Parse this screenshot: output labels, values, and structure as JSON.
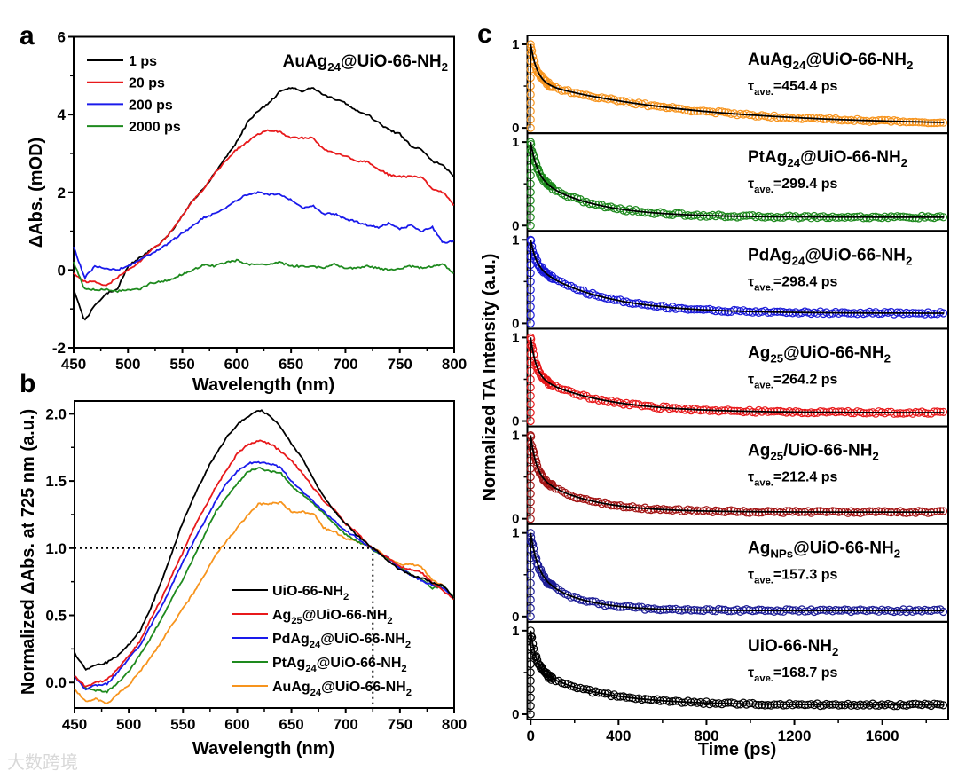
{
  "watermark": "大数跨境",
  "chart_data": [
    {
      "panel": "a",
      "type": "line",
      "annotation": "AuAg_{24}@UiO-66-NH_{2}",
      "xlabel": "Wavelength (nm)",
      "ylabel": "ΔAbs. (mOD)",
      "xlim": [
        450,
        800
      ],
      "ylim": [
        -2,
        6
      ],
      "xticks": [
        450,
        500,
        550,
        600,
        650,
        700,
        750,
        800
      ],
      "yticks": [
        -2,
        0,
        2,
        4,
        6
      ],
      "legend_position": "top-left",
      "x": [
        450,
        460,
        470,
        480,
        490,
        500,
        510,
        520,
        530,
        540,
        550,
        560,
        570,
        580,
        590,
        600,
        610,
        620,
        630,
        640,
        650,
        660,
        670,
        680,
        690,
        700,
        710,
        720,
        730,
        740,
        750,
        760,
        770,
        780,
        790,
        800
      ],
      "series": [
        {
          "name": "1 ps",
          "color": "#000000",
          "values": [
            -0.5,
            -1.3,
            -0.9,
            -0.6,
            -0.5,
            0.1,
            0.3,
            0.5,
            0.7,
            1.0,
            1.4,
            1.8,
            2.1,
            2.5,
            2.9,
            3.3,
            3.8,
            4.1,
            4.3,
            4.6,
            4.7,
            4.6,
            4.7,
            4.5,
            4.4,
            4.3,
            4.1,
            4.0,
            3.8,
            3.6,
            3.5,
            3.2,
            3.1,
            2.8,
            2.7,
            2.4
          ]
        },
        {
          "name": "20 ps",
          "color": "#e8191b",
          "values": [
            -0.1,
            -0.3,
            -0.3,
            -0.4,
            -0.2,
            0.0,
            0.2,
            0.5,
            0.7,
            1.0,
            1.4,
            1.8,
            2.1,
            2.5,
            2.8,
            3.1,
            3.3,
            3.5,
            3.6,
            3.55,
            3.4,
            3.4,
            3.4,
            3.1,
            3.0,
            2.95,
            2.8,
            2.8,
            2.6,
            2.45,
            2.4,
            2.4,
            2.4,
            2.1,
            2.0,
            1.65
          ]
        },
        {
          "name": "200 ps",
          "color": "#1a1aeb",
          "values": [
            0.6,
            -0.2,
            0.1,
            0.05,
            0.0,
            0.1,
            0.25,
            0.4,
            0.55,
            0.75,
            0.95,
            1.15,
            1.35,
            1.45,
            1.6,
            1.8,
            1.95,
            2.0,
            1.95,
            1.95,
            1.8,
            1.6,
            1.65,
            1.45,
            1.45,
            1.3,
            1.25,
            1.15,
            1.1,
            1.2,
            1.05,
            1.15,
            1.0,
            1.1,
            0.7,
            0.75
          ]
        },
        {
          "name": "2000 ps",
          "color": "#1e8a1e",
          "values": [
            0.2,
            -0.5,
            -0.5,
            -0.5,
            -0.55,
            -0.5,
            -0.5,
            -0.35,
            -0.3,
            -0.25,
            -0.1,
            0.0,
            0.15,
            0.1,
            0.2,
            0.25,
            0.15,
            0.15,
            0.15,
            0.2,
            0.1,
            0.1,
            0.1,
            0.05,
            0.15,
            0.05,
            0.05,
            0.1,
            0.05,
            0.0,
            0.05,
            0.1,
            0.05,
            0.1,
            0.15,
            -0.1
          ]
        }
      ]
    },
    {
      "panel": "b",
      "type": "line",
      "xlabel": "Wavelength (nm)",
      "ylabel": "Normalized ΔAbs. at 725 nm (a.u.)",
      "xlim": [
        450,
        800
      ],
      "ylim": [
        -0.19,
        2.095
      ],
      "xticks": [
        450,
        500,
        550,
        600,
        650,
        700,
        750,
        800
      ],
      "yticks": [
        0.0,
        0.5,
        1.0,
        1.5,
        2.0
      ],
      "reference_lines": {
        "y": 1.0,
        "x": 725
      },
      "legend_position": "bottom-right",
      "x": [
        450,
        460,
        470,
        480,
        490,
        500,
        510,
        520,
        530,
        540,
        550,
        560,
        570,
        580,
        590,
        600,
        610,
        620,
        630,
        640,
        650,
        660,
        670,
        680,
        690,
        700,
        710,
        720,
        730,
        740,
        750,
        760,
        770,
        780,
        790,
        800
      ],
      "series": [
        {
          "name": "UiO-66-NH_{2}",
          "color": "#000000",
          "values": [
            0.22,
            0.1,
            0.13,
            0.15,
            0.2,
            0.28,
            0.38,
            0.55,
            0.75,
            0.97,
            1.2,
            1.38,
            1.55,
            1.7,
            1.82,
            1.92,
            1.98,
            2.03,
            1.99,
            1.9,
            1.78,
            1.67,
            1.52,
            1.38,
            1.27,
            1.18,
            1.1,
            1.03,
            0.97,
            0.9,
            0.84,
            0.8,
            0.78,
            0.74,
            0.72,
            0.62
          ]
        },
        {
          "name": "Ag_{25}@UiO-66-NH_{2}",
          "color": "#e8191b",
          "values": [
            0.05,
            -0.03,
            0.0,
            0.02,
            0.1,
            0.2,
            0.3,
            0.47,
            0.62,
            0.8,
            0.97,
            1.15,
            1.3,
            1.45,
            1.58,
            1.7,
            1.77,
            1.8,
            1.78,
            1.72,
            1.65,
            1.56,
            1.45,
            1.35,
            1.28,
            1.18,
            1.12,
            1.03,
            0.97,
            0.92,
            0.86,
            0.84,
            0.82,
            0.74,
            0.68,
            0.62
          ]
        },
        {
          "name": "PdAg_{24}@UiO-66-NH_{2}",
          "color": "#1a1aeb",
          "values": [
            0.05,
            -0.05,
            -0.02,
            -0.01,
            0.08,
            0.18,
            0.27,
            0.42,
            0.56,
            0.73,
            0.9,
            1.05,
            1.2,
            1.35,
            1.48,
            1.57,
            1.63,
            1.64,
            1.63,
            1.6,
            1.5,
            1.42,
            1.35,
            1.27,
            1.2,
            1.13,
            1.08,
            1.02,
            0.97,
            0.92,
            0.85,
            0.8,
            0.76,
            0.72,
            0.7,
            0.62
          ]
        },
        {
          "name": "PtAg_{24}@UiO-66-NH_{2}",
          "color": "#1e8a1e",
          "values": [
            0.05,
            -0.04,
            -0.06,
            -0.07,
            0.0,
            0.08,
            0.2,
            0.33,
            0.47,
            0.63,
            0.77,
            0.93,
            1.1,
            1.27,
            1.38,
            1.48,
            1.57,
            1.6,
            1.57,
            1.56,
            1.46,
            1.4,
            1.33,
            1.26,
            1.18,
            1.1,
            1.05,
            1.02,
            0.96,
            0.92,
            0.86,
            0.8,
            0.77,
            0.7,
            0.72,
            0.63
          ]
        },
        {
          "name": "AuAg_{24}@UiO-66-NH_{2}",
          "color": "#f7941d",
          "values": [
            -0.05,
            -0.14,
            -0.12,
            -0.16,
            -0.08,
            -0.02,
            0.08,
            0.18,
            0.3,
            0.43,
            0.55,
            0.67,
            0.8,
            0.95,
            1.05,
            1.15,
            1.25,
            1.33,
            1.33,
            1.34,
            1.27,
            1.27,
            1.26,
            1.15,
            1.12,
            1.07,
            1.05,
            1.02,
            0.98,
            0.92,
            0.88,
            0.88,
            0.86,
            0.76,
            0.72,
            0.62
          ]
        }
      ]
    },
    {
      "panel": "c",
      "type": "scatter",
      "xlabel": "Time (ps)",
      "ylabel": "Normalized TA Intensity (a.u.)",
      "xlim": [
        -15,
        1900
      ],
      "ylim": [
        -0.064,
        1.106
      ],
      "xticks": [
        0,
        400,
        800,
        1200,
        1600
      ],
      "yticks": [
        0,
        1
      ],
      "fit_model": "y = A1*exp(-t/t1) + A2*exp(-t/t2) + c",
      "series": [
        {
          "name": "AuAg_{24}@UiO-66-NH_{2}",
          "tau": "τ_{ave.}=454.4 ps",
          "color": "#f7941d",
          "fit": {
            "A1": 0.45,
            "t1": 30,
            "A2": 0.52,
            "t2": 700,
            "c": 0.03
          }
        },
        {
          "name": "PtAg_{24}@UiO-66-NH_{2}",
          "tau": "τ_{ave.}=299.4 ps",
          "color": "#1e8a1e",
          "fit": {
            "A1": 0.4,
            "t1": 30,
            "A2": 0.5,
            "t2": 250,
            "c": 0.1
          }
        },
        {
          "name": "PdAg_{24}@UiO-66-NH_{2}",
          "tau": "τ_{ave.}=298.4 ps",
          "color": "#1a1ad8",
          "fit": {
            "A1": 0.3,
            "t1": 25,
            "A2": 0.58,
            "t2": 300,
            "c": 0.12
          }
        },
        {
          "name": "Ag_{25}@UiO-66-NH_{2}",
          "tau": "τ_{ave.}=264.2 ps",
          "color": "#e8191b",
          "fit": {
            "A1": 0.45,
            "t1": 25,
            "A2": 0.45,
            "t2": 300,
            "c": 0.1
          }
        },
        {
          "name": "Ag_{25}/UiO-66-NH_{2}",
          "tau": "τ_{ave.}=212.4 ps",
          "color": "#a31515",
          "fit": {
            "A1": 0.45,
            "t1": 25,
            "A2": 0.47,
            "t2": 220,
            "c": 0.08
          }
        },
        {
          "name": "Ag_{NPs}@UiO-66-NH_{2}",
          "tau": "τ_{ave.}=157.3 ps",
          "color": "#1c1c96",
          "fit": {
            "A1": 0.45,
            "t1": 30,
            "A2": 0.48,
            "t2": 180,
            "c": 0.07
          }
        },
        {
          "name": "UiO-66-NH_{2}",
          "tau": "τ_{ave.}=168.7 ps",
          "color": "#000000",
          "fit": {
            "A1": 0.45,
            "t1": 25,
            "A2": 0.44,
            "t2": 280,
            "c": 0.11
          }
        }
      ]
    }
  ],
  "panel_letters": [
    "a",
    "b",
    "c"
  ]
}
